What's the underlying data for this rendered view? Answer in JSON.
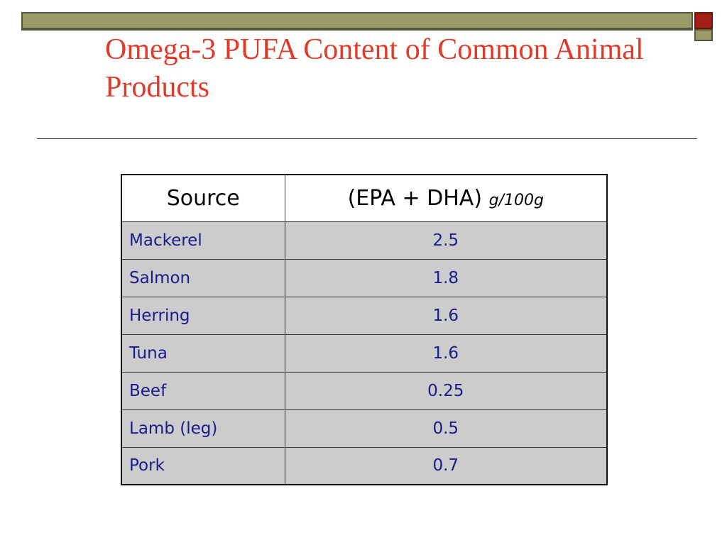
{
  "slide": {
    "title": "Omega-3 PUFA Content of Common Animal Products"
  },
  "table": {
    "headers": {
      "source": "Source",
      "content": "(EPA + DHA)",
      "unit": "g/100g"
    },
    "rows": [
      {
        "source": "Mackerel",
        "value": "2.5"
      },
      {
        "source": "Salmon",
        "value": "1.8"
      },
      {
        "source": "Herring",
        "value": "1.6"
      },
      {
        "source": "Tuna",
        "value": "1.6"
      },
      {
        "source": "Beef",
        "value": "0.25"
      },
      {
        "source": "Lamb (leg)",
        "value": "0.5"
      },
      {
        "source": "Pork",
        "value": "0.7"
      }
    ]
  },
  "colors": {
    "title": "#e03a28",
    "bar_olive": "#9c9c6b",
    "bar_red": "#a11f17",
    "cell_text": "#1a1a8c",
    "cell_bg": "#cccccc"
  }
}
